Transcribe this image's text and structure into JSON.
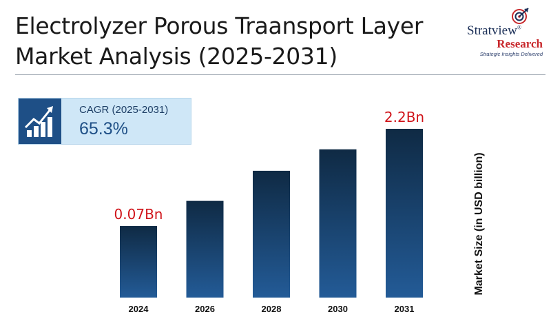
{
  "header": {
    "title_line1": "Electrolyzer Porous Traansport Layer",
    "title_line2": "Market Analysis (2025-2031)"
  },
  "logo": {
    "name": "Stratview",
    "mark": "®",
    "sub": "Research",
    "tagline": "Strategic Insights Delivered"
  },
  "cagr": {
    "label": "CAGR (2025-2031)",
    "value": "65.3%",
    "icon": "growth-chart-icon"
  },
  "colors": {
    "bar_top": "#0f2a44",
    "bar_bottom": "#235b97",
    "value_label": "#d0141a",
    "accent": "#1e4f86"
  },
  "chart_data": {
    "type": "bar",
    "categories": [
      "2024",
      "2026",
      "2028",
      "2030",
      "2031"
    ],
    "values": [
      0.07,
      0.62,
      1.28,
      1.75,
      2.2
    ],
    "value_labels": [
      "0.07Bn",
      "",
      "",
      "",
      "2.2Bn"
    ],
    "title": "",
    "xlabel": "",
    "ylabel": "Market Size (in USD billion)",
    "ylim": [
      -1.5,
      2.2
    ],
    "grid": false,
    "legend": "none"
  }
}
